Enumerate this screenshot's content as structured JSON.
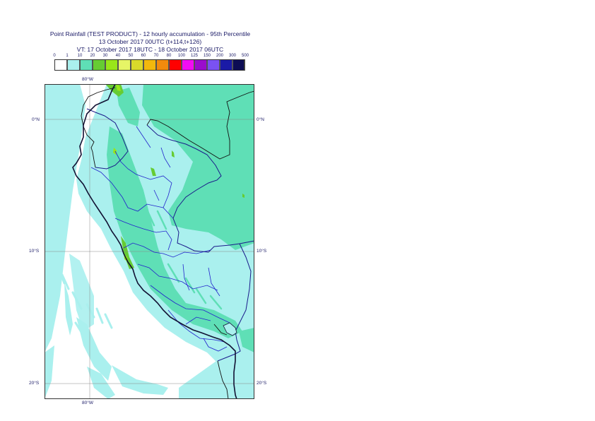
{
  "title": {
    "line1": "Point Rainfall (TEST PRODUCT) - 12 hourly accumulation - 95th Percentile",
    "line2": "13 October 2017 00UTC (t+114,t+126)",
    "line3": "VT: 17 October 2017 18UTC - 18 October 2017 06UTC"
  },
  "legend": {
    "thresholds": [
      "0",
      "1",
      "10",
      "20",
      "30",
      "40",
      "50",
      "60",
      "70",
      "80",
      "100",
      "125",
      "150",
      "200",
      "300",
      "500"
    ],
    "colors": [
      "#ffffff",
      "#aaf0ee",
      "#5fdfb6",
      "#66cc33",
      "#99e619",
      "#e6f566",
      "#d9d92b",
      "#f2b80d",
      "#f28a0d",
      "#ff0000",
      "#f20df2",
      "#9a0dcc",
      "#7a52f2",
      "#1a1aa6",
      "#0d0d55"
    ]
  },
  "axes": {
    "lon_top": "80°W",
    "lon_bottom": "80°W",
    "lat_0_left": "0°N",
    "lat_0_right": "0°N",
    "lat_10_left": "10°S",
    "lat_10_right": "10°S",
    "lat_20_left": "20°S",
    "lat_20_right": "20°S"
  },
  "map": {
    "ocean_color": "#aaf0ee",
    "land_light_color": "#aaf0ee",
    "land_mid_color": "#5fdfb6",
    "peak_color": "#66cc33",
    "coast_color": "#000000",
    "border_color": "#1a1a8a",
    "region_color": "#2222cc",
    "grid_color": "#888888"
  }
}
